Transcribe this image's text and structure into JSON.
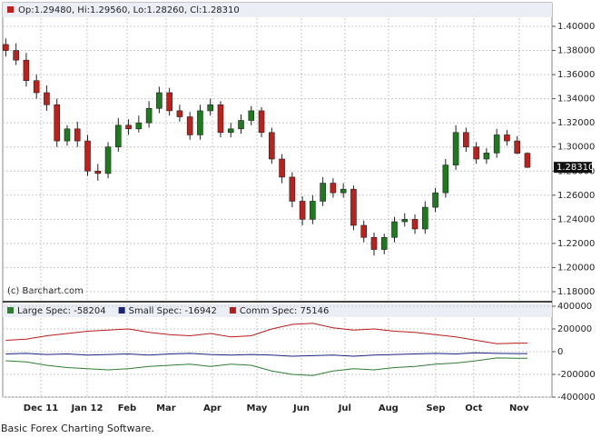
{
  "caption": "Basic Forex Charting Software.",
  "chart_data": [
    {
      "type": "candlestick",
      "header": "Op:1.29480, Hi:1.29560, Lo:1.28260, Cl:1.28310",
      "watermark": "(c) Barchart.com",
      "last_label": "1.28310",
      "x": [
        0,
        1,
        2,
        3,
        4,
        5,
        6,
        7,
        8,
        9,
        10,
        11,
        12,
        13,
        14,
        15,
        16,
        17,
        18,
        19,
        20,
        21,
        22,
        23,
        24,
        25,
        26,
        27,
        28,
        29,
        30,
        31,
        32,
        33,
        34,
        35,
        36,
        37,
        38,
        39,
        40,
        41,
        42,
        43,
        44,
        45,
        46,
        47,
        48,
        49,
        50,
        51
      ],
      "open": [
        1.385,
        1.38,
        1.372,
        1.355,
        1.345,
        1.335,
        1.305,
        1.315,
        1.305,
        1.28,
        1.278,
        1.3,
        1.318,
        1.315,
        1.32,
        1.332,
        1.345,
        1.33,
        1.325,
        1.31,
        1.33,
        1.335,
        1.312,
        1.315,
        1.322,
        1.33,
        1.312,
        1.29,
        1.275,
        1.255,
        1.24,
        1.255,
        1.27,
        1.262,
        1.265,
        1.235,
        1.225,
        1.215,
        1.225,
        1.238,
        1.24,
        1.232,
        1.25,
        1.262,
        1.285,
        1.312,
        1.3,
        1.29,
        1.295,
        1.31,
        1.305,
        1.2948
      ],
      "high": [
        1.39,
        1.386,
        1.378,
        1.36,
        1.351,
        1.34,
        1.318,
        1.321,
        1.31,
        1.286,
        1.304,
        1.324,
        1.323,
        1.326,
        1.338,
        1.35,
        1.349,
        1.335,
        1.329,
        1.335,
        1.34,
        1.338,
        1.32,
        1.327,
        1.334,
        1.333,
        1.316,
        1.294,
        1.279,
        1.259,
        1.26,
        1.275,
        1.274,
        1.27,
        1.268,
        1.239,
        1.229,
        1.228,
        1.242,
        1.245,
        1.244,
        1.255,
        1.266,
        1.29,
        1.318,
        1.316,
        1.304,
        1.299,
        1.315,
        1.314,
        1.309,
        1.2956
      ],
      "low": [
        1.375,
        1.368,
        1.35,
        1.34,
        1.33,
        1.3,
        1.301,
        1.3,
        1.276,
        1.272,
        1.274,
        1.296,
        1.31,
        1.312,
        1.316,
        1.328,
        1.326,
        1.321,
        1.306,
        1.306,
        1.326,
        1.308,
        1.308,
        1.311,
        1.318,
        1.308,
        1.286,
        1.27,
        1.25,
        1.235,
        1.236,
        1.251,
        1.258,
        1.258,
        1.231,
        1.221,
        1.21,
        1.211,
        1.221,
        1.234,
        1.228,
        1.228,
        1.246,
        1.258,
        1.281,
        1.296,
        1.286,
        1.286,
        1.291,
        1.301,
        1.294,
        1.2826
      ],
      "close": [
        1.38,
        1.372,
        1.355,
        1.345,
        1.335,
        1.305,
        1.315,
        1.305,
        1.28,
        1.278,
        1.3,
        1.318,
        1.315,
        1.32,
        1.332,
        1.345,
        1.33,
        1.325,
        1.31,
        1.33,
        1.335,
        1.312,
        1.315,
        1.322,
        1.33,
        1.312,
        1.29,
        1.275,
        1.255,
        1.24,
        1.255,
        1.27,
        1.262,
        1.265,
        1.235,
        1.225,
        1.215,
        1.225,
        1.238,
        1.24,
        1.232,
        1.25,
        1.262,
        1.285,
        1.312,
        1.3,
        1.29,
        1.295,
        1.31,
        1.305,
        1.2948,
        1.2831
      ],
      "up_color": "#1d7a1d",
      "down_color": "#c0201c",
      "xlim": [
        -0.3,
        53.4
      ],
      "ylim": [
        1.1732,
        1.4196
      ],
      "yticks": [
        {
          "value": 1.18,
          "label": "1.18000"
        },
        {
          "value": 1.2,
          "label": "1.20000"
        },
        {
          "value": 1.22,
          "label": "1.22000"
        },
        {
          "value": 1.24,
          "label": "1.24000"
        },
        {
          "value": 1.26,
          "label": "1.26000"
        },
        {
          "value": 1.28,
          "label": "1.28000"
        },
        {
          "value": 1.3,
          "label": "1.30000"
        },
        {
          "value": 1.32,
          "label": "1.32000"
        },
        {
          "value": 1.34,
          "label": "1.34000"
        },
        {
          "value": 1.36,
          "label": "1.36000"
        },
        {
          "value": 1.38,
          "label": "1.38000"
        },
        {
          "value": 1.4,
          "label": "1.40000"
        }
      ],
      "xticks": [
        {
          "value": 3.43,
          "label": "Dec 11"
        },
        {
          "value": 7.95,
          "label": "Jan 12"
        },
        {
          "value": 11.86,
          "label": "Feb"
        },
        {
          "value": 15.67,
          "label": "Mar"
        },
        {
          "value": 20.2,
          "label": "Apr"
        },
        {
          "value": 24.55,
          "label": "May"
        },
        {
          "value": 28.9,
          "label": "Jun"
        },
        {
          "value": 33.15,
          "label": "Jul"
        },
        {
          "value": 37.41,
          "label": "Aug"
        },
        {
          "value": 42.03,
          "label": "Sep"
        },
        {
          "value": 45.75,
          "label": "Oct"
        },
        {
          "value": 50.19,
          "label": "Nov"
        }
      ],
      "grid": true
    },
    {
      "type": "line",
      "x": [
        0,
        2,
        4,
        6,
        8,
        10,
        12,
        14,
        16,
        18,
        20,
        22,
        24,
        26,
        28,
        30,
        32,
        34,
        36,
        38,
        40,
        42,
        44,
        46,
        48,
        50,
        51
      ],
      "series": [
        {
          "name": "Large Spec: -58204",
          "color": "#2e7d32",
          "values": [
            -80000,
            -90000,
            -120000,
            -140000,
            -150000,
            -160000,
            -150000,
            -130000,
            -120000,
            -110000,
            -130000,
            -110000,
            -120000,
            -170000,
            -200000,
            -210000,
            -170000,
            -150000,
            -160000,
            -140000,
            -130000,
            -110000,
            -100000,
            -80000,
            -55000,
            -58000,
            -58204
          ]
        },
        {
          "name": "Small Spec: -16942",
          "color": "#1a237e",
          "values": [
            -20000,
            -15000,
            -25000,
            -20000,
            -30000,
            -25000,
            -20000,
            -30000,
            -20000,
            -15000,
            -25000,
            -30000,
            -25000,
            -30000,
            -40000,
            -35000,
            -30000,
            -40000,
            -30000,
            -25000,
            -20000,
            -15000,
            -20000,
            -10000,
            -15000,
            -17000,
            -16942
          ]
        },
        {
          "name": "Comm Spec: 75146",
          "color": "#b71c1c",
          "values": [
            100000,
            110000,
            140000,
            160000,
            180000,
            190000,
            200000,
            170000,
            150000,
            140000,
            160000,
            130000,
            140000,
            200000,
            240000,
            250000,
            210000,
            190000,
            200000,
            180000,
            170000,
            150000,
            130000,
            100000,
            70000,
            75000,
            75146
          ]
        }
      ],
      "xlim": [
        -0.3,
        53.4
      ],
      "ylim": [
        -400000,
        400000
      ],
      "yticks": [
        -400000,
        -200000,
        0,
        200000,
        400000
      ],
      "grid": true
    }
  ]
}
